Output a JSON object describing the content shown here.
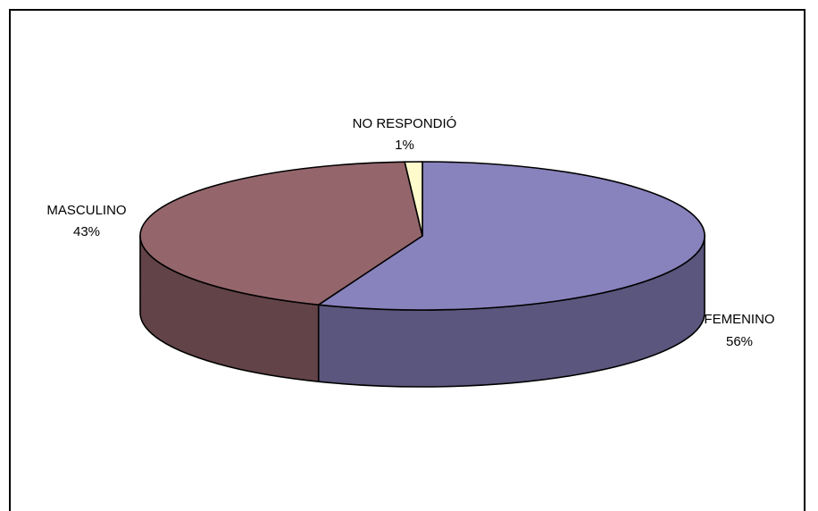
{
  "chart_data": {
    "type": "pie",
    "style": "3d-exploded-none",
    "categories": [
      "FEMENINO",
      "MASCULINO",
      "NO RESPONDIÓ"
    ],
    "values": [
      56,
      43,
      1
    ],
    "value_labels": [
      "56%",
      "43%",
      "1%"
    ],
    "colors": {
      "FEMENINO": "#8882bd",
      "MASCULINO": "#94666c",
      "NO RESPONDIÓ": "#fffacc"
    },
    "legend": "none"
  }
}
